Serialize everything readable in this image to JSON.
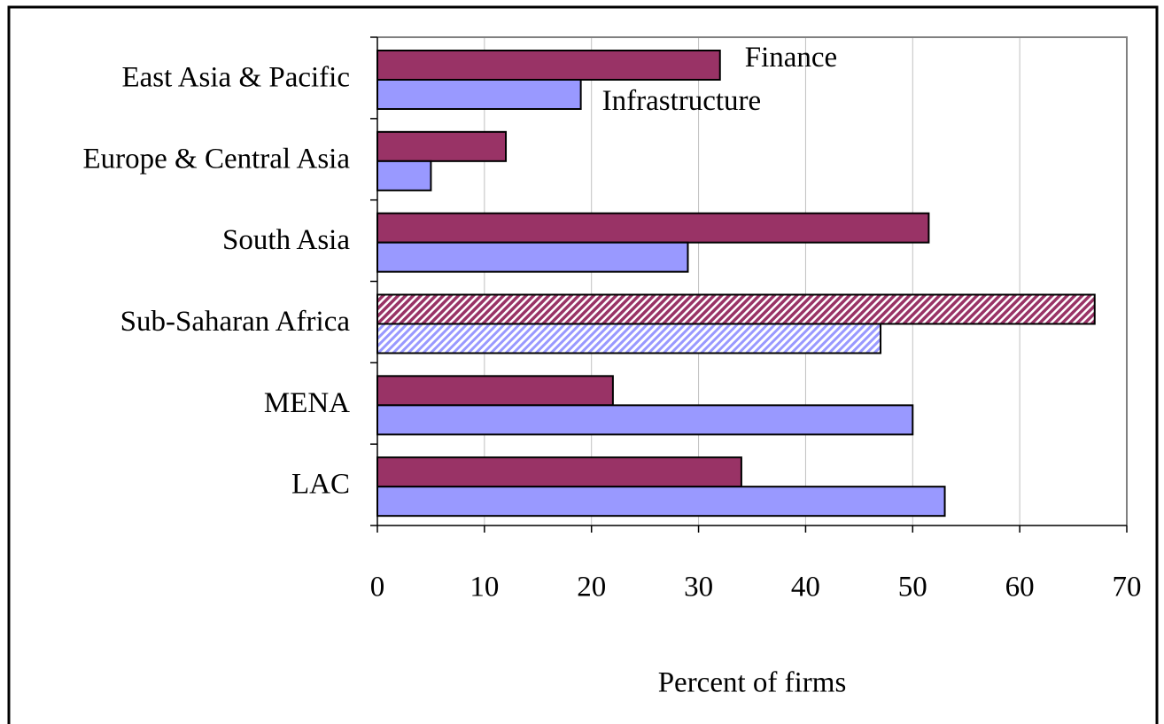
{
  "chart_data": {
    "type": "bar",
    "orientation": "horizontal",
    "categories": [
      "East Asia & Pacific",
      "Europe & Central Asia",
      "South Asia",
      "Sub-Saharan Africa",
      "MENA",
      "LAC"
    ],
    "series": [
      {
        "name": "Finance",
        "color": "#993366",
        "values": [
          32,
          12,
          51.5,
          67,
          22,
          34
        ]
      },
      {
        "name": "Infrastructure",
        "color": "#9999ff",
        "values": [
          19,
          5,
          29,
          47,
          50,
          53
        ]
      }
    ],
    "hatched": [
      false,
      false,
      false,
      true,
      false,
      false
    ],
    "xlabel": "Percent of firms",
    "xlim": [
      0,
      70
    ],
    "xticks": [
      0,
      10,
      20,
      30,
      40,
      50,
      60,
      70
    ],
    "grid": true
  }
}
